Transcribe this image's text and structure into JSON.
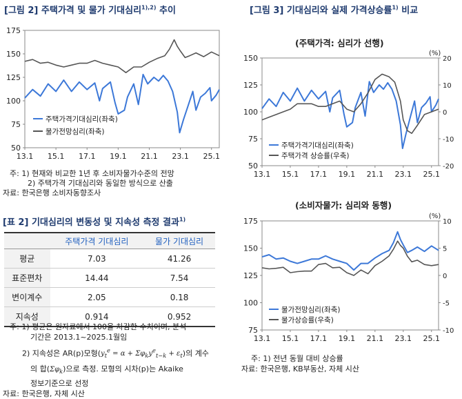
{
  "figure2": {
    "title": "[그림 2] 주택가격 및 물가 기대심리",
    "title_sup": "1),2)",
    "title_tail": " 추이",
    "notes": [
      "주: 1) 현재와 비교한 1년 후 소비자물가수준의 전망",
      "2) 주택가격 기대심리와 동일한 방식으로 산출"
    ],
    "source": "자료: 한국은행 소비자동향조사"
  },
  "figure3": {
    "title": "[그림 3] 기대심리와 실제 가격상승률",
    "title_sup": "1)",
    "title_tail": " 비교",
    "notes": [
      "주: 1) 전년 동월 대비 상승률"
    ],
    "source": "자료: 한국은행, KB부동산, 자체 시산"
  },
  "table2": {
    "title": "[표 2] 기대심리의 변동성 및 지속성 측정 결과",
    "title_sup": "1)",
    "headers": [
      "",
      "주택가격 기대심리",
      "물가 기대심리"
    ],
    "rows": [
      {
        "label": "평균",
        "house": "7.03",
        "price": "41.26"
      },
      {
        "label": "표준편차",
        "house": "14.44",
        "price": "7.54"
      },
      {
        "label": "변이계수",
        "house": "2.05",
        "price": "0.18"
      },
      {
        "label": "지속성",
        "house": "0.914",
        "price": "0.952"
      }
    ],
    "notes": {
      "n1a": "주: 1) 평균은 원자료에서 100을 차감한 수치이며, 분석",
      "n1b": "기간은 2013.1~2025.1월임",
      "n2a": "2) 지속성은 AR(p)모형(",
      "n2b": ")의 계수",
      "n2c": "의 합(",
      "n2d": ")으로 측정. 모형의 시차(p)는 Akaike",
      "n2e": "정보기준으로 선정",
      "source": "자료: 한국은행, 자체 시산"
    }
  },
  "chart_data": [
    {
      "type": "line",
      "x_ticks": [
        "13.1",
        "15.1",
        "17.1",
        "19.1",
        "21.1",
        "23.1",
        "25.1"
      ],
      "y_ticks": [
        50,
        75,
        100,
        125,
        150,
        175
      ],
      "ylim": [
        50,
        175
      ],
      "xlim": [
        2013.0,
        2025.5
      ],
      "series": [
        {
          "name": "주택가격기대심리(좌축)",
          "color": "#3c78d8",
          "x": [
            2013.0,
            2013.5,
            2014.0,
            2014.5,
            2015.0,
            2015.5,
            2016.0,
            2016.5,
            2017.0,
            2017.5,
            2017.8,
            2018.0,
            2018.5,
            2018.8,
            2019.0,
            2019.4,
            2019.6,
            2020.0,
            2020.3,
            2020.6,
            2020.9,
            2021.3,
            2021.6,
            2021.9,
            2022.2,
            2022.5,
            2022.8,
            2022.95,
            2023.2,
            2023.5,
            2023.8,
            2024.0,
            2024.3,
            2024.6,
            2024.9,
            2025.0,
            2025.3,
            2025.5
          ],
          "y": [
            103,
            112,
            105,
            118,
            110,
            122,
            110,
            120,
            112,
            119,
            100,
            113,
            120,
            98,
            86,
            90,
            104,
            118,
            96,
            128,
            118,
            125,
            121,
            127,
            121,
            110,
            88,
            66,
            80,
            95,
            110,
            90,
            104,
            108,
            114,
            100,
            106,
            112
          ]
        },
        {
          "name": "물가전망심리(좌축)",
          "color": "#555555",
          "x": [
            2013.0,
            2013.5,
            2014.0,
            2014.5,
            2015.0,
            2015.5,
            2016.0,
            2016.5,
            2017.0,
            2017.5,
            2018.0,
            2018.5,
            2019.0,
            2019.5,
            2020.0,
            2020.5,
            2021.0,
            2021.5,
            2022.0,
            2022.3,
            2022.6,
            2022.8,
            2023.0,
            2023.3,
            2023.6,
            2024.0,
            2024.5,
            2025.0,
            2025.5
          ],
          "y": [
            142,
            144,
            140,
            141,
            138,
            136,
            138,
            140,
            140,
            143,
            140,
            138,
            136,
            130,
            136,
            136,
            141,
            145,
            148,
            155,
            165,
            158,
            153,
            146,
            148,
            151,
            147,
            152,
            148
          ]
        }
      ]
    },
    {
      "type": "line",
      "title": "(주택가격: 심리가 선행)",
      "x_ticks": [
        "13.1",
        "15.1",
        "17.1",
        "19.1",
        "21.1",
        "23.1",
        "25.1"
      ],
      "y_ticks_left": [
        50,
        75,
        100,
        125,
        150
      ],
      "y_ticks_right": [
        -20,
        -10,
        0,
        10,
        20
      ],
      "right_unit": "(%)",
      "ylim_left": [
        50,
        150
      ],
      "ylim_right": [
        -20,
        20
      ],
      "xlim": [
        2013.0,
        2025.5
      ],
      "series": [
        {
          "name": "주택가격기대심리(좌축)",
          "axis": "left",
          "color": "#3c78d8",
          "x": [
            2013.0,
            2013.5,
            2014.0,
            2014.5,
            2015.0,
            2015.5,
            2016.0,
            2016.5,
            2017.0,
            2017.5,
            2017.8,
            2018.0,
            2018.5,
            2018.8,
            2019.0,
            2019.4,
            2019.6,
            2020.0,
            2020.3,
            2020.6,
            2020.9,
            2021.3,
            2021.6,
            2021.9,
            2022.2,
            2022.5,
            2022.8,
            2022.95,
            2023.2,
            2023.5,
            2023.8,
            2024.0,
            2024.3,
            2024.6,
            2024.9,
            2025.0,
            2025.3,
            2025.5
          ],
          "y": [
            103,
            112,
            105,
            118,
            110,
            122,
            110,
            120,
            112,
            119,
            100,
            113,
            120,
            98,
            86,
            90,
            104,
            118,
            96,
            128,
            118,
            125,
            121,
            127,
            121,
            110,
            88,
            66,
            80,
            95,
            110,
            90,
            104,
            108,
            114,
            100,
            106,
            112
          ]
        },
        {
          "name": "주택가격 상승률(우축)",
          "axis": "right",
          "color": "#555555",
          "x": [
            2013.0,
            2013.5,
            2014.0,
            2014.5,
            2015.0,
            2015.5,
            2016.0,
            2016.5,
            2017.0,
            2017.5,
            2018.0,
            2018.5,
            2019.0,
            2019.5,
            2020.0,
            2020.5,
            2021.0,
            2021.5,
            2022.0,
            2022.4,
            2022.8,
            2023.0,
            2023.3,
            2023.6,
            2024.0,
            2024.5,
            2025.0,
            2025.5
          ],
          "y": [
            -3,
            -2,
            -1,
            0,
            1,
            3,
            3,
            3,
            2,
            2,
            3,
            4,
            1,
            0,
            3,
            7,
            12,
            14,
            13,
            11,
            4,
            -3,
            -7,
            -8,
            -5,
            -1,
            0,
            1
          ]
        }
      ]
    },
    {
      "type": "line",
      "title": "(소비자물가: 심리와 동행)",
      "x_ticks": [
        "13.1",
        "15.1",
        "17.1",
        "19.1",
        "21.1",
        "23.1",
        "25.1"
      ],
      "y_ticks_left": [
        75,
        100,
        125,
        150,
        175
      ],
      "y_ticks_right": [
        -10,
        -5,
        0,
        5,
        10
      ],
      "right_unit": "(%)",
      "ylim_left": [
        75,
        175
      ],
      "ylim_right": [
        -10,
        10
      ],
      "xlim": [
        2013.0,
        2025.5
      ],
      "series": [
        {
          "name": "물가전망심리(좌축)",
          "axis": "left",
          "color": "#3c78d8",
          "x": [
            2013.0,
            2013.5,
            2014.0,
            2014.5,
            2015.0,
            2015.5,
            2016.0,
            2016.5,
            2017.0,
            2017.5,
            2018.0,
            2018.5,
            2019.0,
            2019.5,
            2020.0,
            2020.5,
            2021.0,
            2021.5,
            2022.0,
            2022.3,
            2022.6,
            2022.8,
            2023.0,
            2023.3,
            2023.6,
            2024.0,
            2024.5,
            2025.0,
            2025.5
          ],
          "y": [
            142,
            144,
            140,
            141,
            138,
            136,
            138,
            140,
            140,
            143,
            140,
            138,
            136,
            130,
            136,
            136,
            141,
            145,
            148,
            155,
            165,
            158,
            153,
            146,
            148,
            151,
            147,
            152,
            148
          ]
        },
        {
          "name": "물가상승률(우축)",
          "axis": "right",
          "color": "#555555",
          "x": [
            2013.0,
            2013.5,
            2014.0,
            2014.5,
            2015.0,
            2015.5,
            2016.0,
            2016.5,
            2017.0,
            2017.5,
            2018.0,
            2018.5,
            2019.0,
            2019.5,
            2020.0,
            2020.5,
            2021.0,
            2021.5,
            2022.0,
            2022.3,
            2022.6,
            2022.8,
            2023.0,
            2023.3,
            2023.6,
            2024.0,
            2024.5,
            2025.0,
            2025.5
          ],
          "y": [
            1.4,
            1.2,
            1.3,
            1.5,
            0.5,
            0.7,
            0.8,
            0.8,
            2.0,
            2.2,
            1.4,
            1.5,
            0.5,
            0.0,
            1.0,
            0.3,
            1.8,
            2.6,
            3.6,
            4.8,
            6.3,
            5.5,
            5.0,
            3.5,
            2.5,
            2.8,
            2.0,
            1.8,
            2.0
          ]
        }
      ]
    }
  ]
}
